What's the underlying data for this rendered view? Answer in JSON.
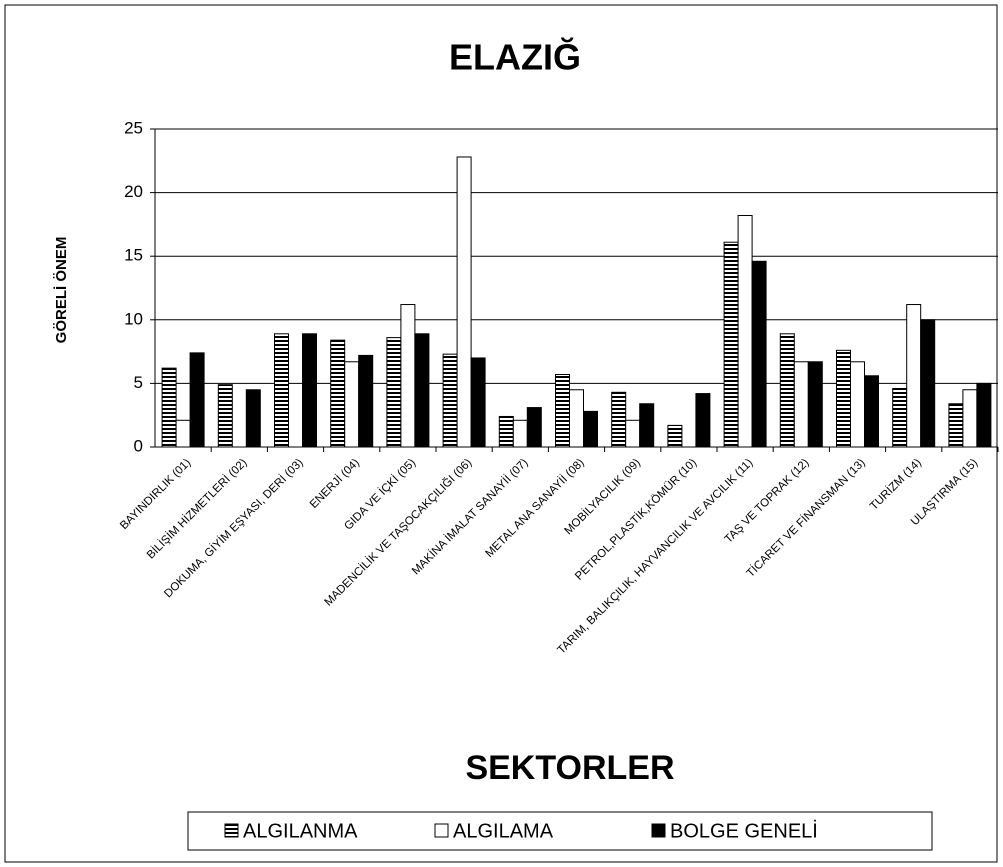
{
  "chart_data": {
    "type": "bar",
    "title": "ELAZIĞ",
    "x_label": "SEKTORLER",
    "y_label": "GÖRELİ ÖNEM",
    "categories": [
      "BAYINDIRLIK (01)",
      "BİLİŞİM HİZMETLERİ (02)",
      "DOKUMA, GİYİM EŞYASI, DERİ (03)",
      "ENERJİ (04)",
      "GIDA VE İÇKİ (05)",
      "MADENCİLİK VE TAŞOCAKÇILIĞI (06)",
      "MAKİNA İMALAT SANAYİİ (07)",
      "METAL ANA SANAYİİ (08)",
      "MOBİLYACILIK (09)",
      "PETROL,PLASTİK,KÖMÜR (10)",
      "TARIM, BALIKÇILIK, HAYVANCILIK VE AVCILIK (11)",
      "TAŞ VE TOPRAK (12)",
      "TİCARET VE FİNANSMAN (13)",
      "TURİZM (14)",
      "ULAŞTIRMA (15)"
    ],
    "series": [
      {
        "name": "ALGILANMA",
        "color": "#ffffff",
        "pattern": "horizontal-stripes",
        "values": [
          6.2,
          4.9,
          8.9,
          8.4,
          8.6,
          7.3,
          2.4,
          5.7,
          4.3,
          1.7,
          16.1,
          8.9,
          7.6,
          4.6,
          3.4
        ]
      },
      {
        "name": "ALGILAMA",
        "color": "#ffffff",
        "values": [
          2.1,
          0,
          0,
          6.7,
          11.2,
          22.8,
          2.1,
          4.5,
          2.1,
          0,
          18.2,
          6.7,
          6.7,
          11.2,
          4.5
        ]
      },
      {
        "name": "BOLGE GENELİ",
        "color": "#000000",
        "values": [
          7.4,
          4.5,
          8.9,
          7.2,
          8.9,
          7.0,
          3.1,
          2.8,
          3.4,
          4.2,
          14.6,
          6.7,
          5.6,
          10.0,
          5.0
        ]
      }
    ],
    "ylim": [
      0,
      25
    ],
    "yticks": [
      0,
      5,
      10,
      15,
      20,
      25
    ],
    "grid": true,
    "legend": "bottom"
  }
}
